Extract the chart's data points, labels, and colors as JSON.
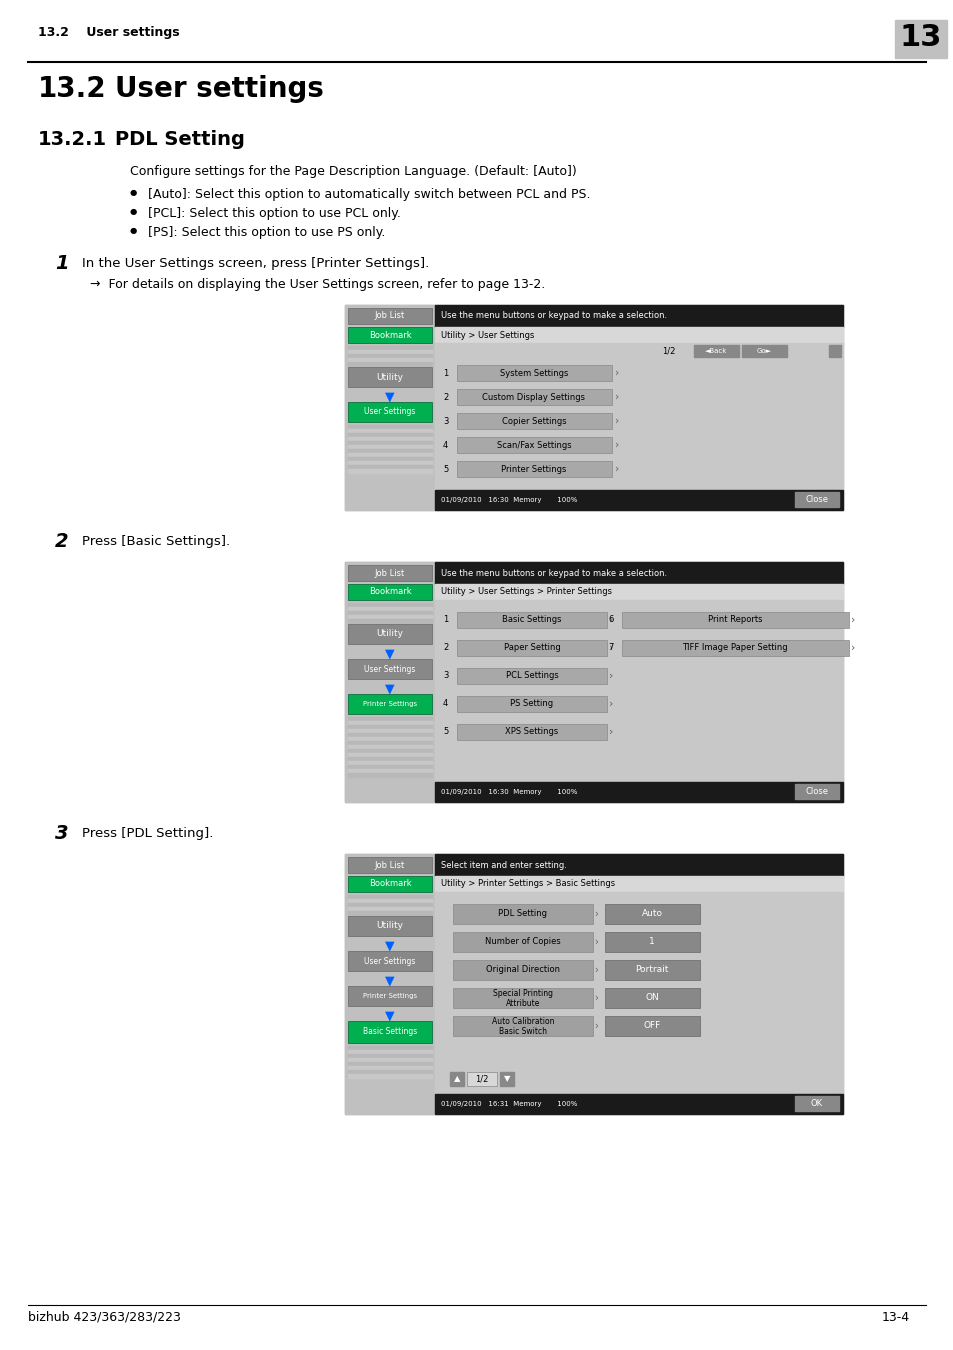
{
  "header_section": "13.2    User settings",
  "header_number": "13",
  "title_section": "13.2",
  "title_text": "User settings",
  "subtitle_section": "13.2.1",
  "subtitle_text": "PDL Setting",
  "description": "Configure settings for the Page Description Language. (Default: [Auto])",
  "bullets": [
    "[Auto]: Select this option to automatically switch between PCL and PS.",
    "[PCL]: Select this option to use PCL only.",
    "[PS]: Select this option to use PS only."
  ],
  "step1_num": "1",
  "step1_text": "In the User Settings screen, press [Printer Settings].",
  "step1_note": "→  For details on displaying the User Settings screen, refer to page 13-2.",
  "step2_num": "2",
  "step2_text": "Press [Basic Settings].",
  "step3_num": "3",
  "step3_text": "Press [PDL Setting].",
  "footer_left": "bizhub 423/363/283/223",
  "footer_right": "13-4",
  "screen1": {
    "top_text": "Use the menu buttons or keypad to make a selection.",
    "path": "Utility > User Settings",
    "nav": "1/2",
    "back_btn": "◄Back",
    "fwd_btn": "Go►",
    "items": [
      "System Settings",
      "Custom Display Settings",
      "Copier Settings",
      "Scan/Fax Settings",
      "Printer Settings"
    ],
    "footer_time": "01/09/2010   16:30",
    "footer_mem": "Memory       100%",
    "close_btn": "Close",
    "sidebar": [
      "Job List",
      "Bookmark",
      "Utility",
      "User Settings"
    ]
  },
  "screen2": {
    "top_text": "Use the menu buttons or keypad to make a selection.",
    "path": "Utility > User Settings > Printer Settings",
    "left_items": [
      "Basic Settings",
      "Paper Setting",
      "PCL Settings",
      "PS Setting",
      "XPS Settings"
    ],
    "right_items": [
      "Print Reports",
      "TIFF Image Paper Setting"
    ],
    "footer_time": "01/09/2010   16:30",
    "footer_mem": "Memory       100%",
    "close_btn": "Close",
    "sidebar": [
      "Job List",
      "Bookmark",
      "Utility",
      "User Settings",
      "Printer Settings"
    ]
  },
  "screen3": {
    "top_text": "Select item and enter setting.",
    "path": "Utility > Printer Settings > Basic Settings",
    "settings": [
      [
        "PDL Setting",
        "Auto"
      ],
      [
        "Number of Copies",
        "1"
      ],
      [
        "Original Direction",
        "Portrait"
      ],
      [
        "Special Printing\nAttribute",
        "ON"
      ],
      [
        "Auto Calibration\nBasic Switch",
        "OFF"
      ]
    ],
    "footer_time": "01/09/2010   16:31",
    "footer_mem": "Memory       100%",
    "ok_btn": "OK",
    "sidebar": [
      "Job List",
      "Bookmark",
      "Utility",
      "User Settings",
      "Printer Settings",
      "Basic Settings"
    ]
  }
}
